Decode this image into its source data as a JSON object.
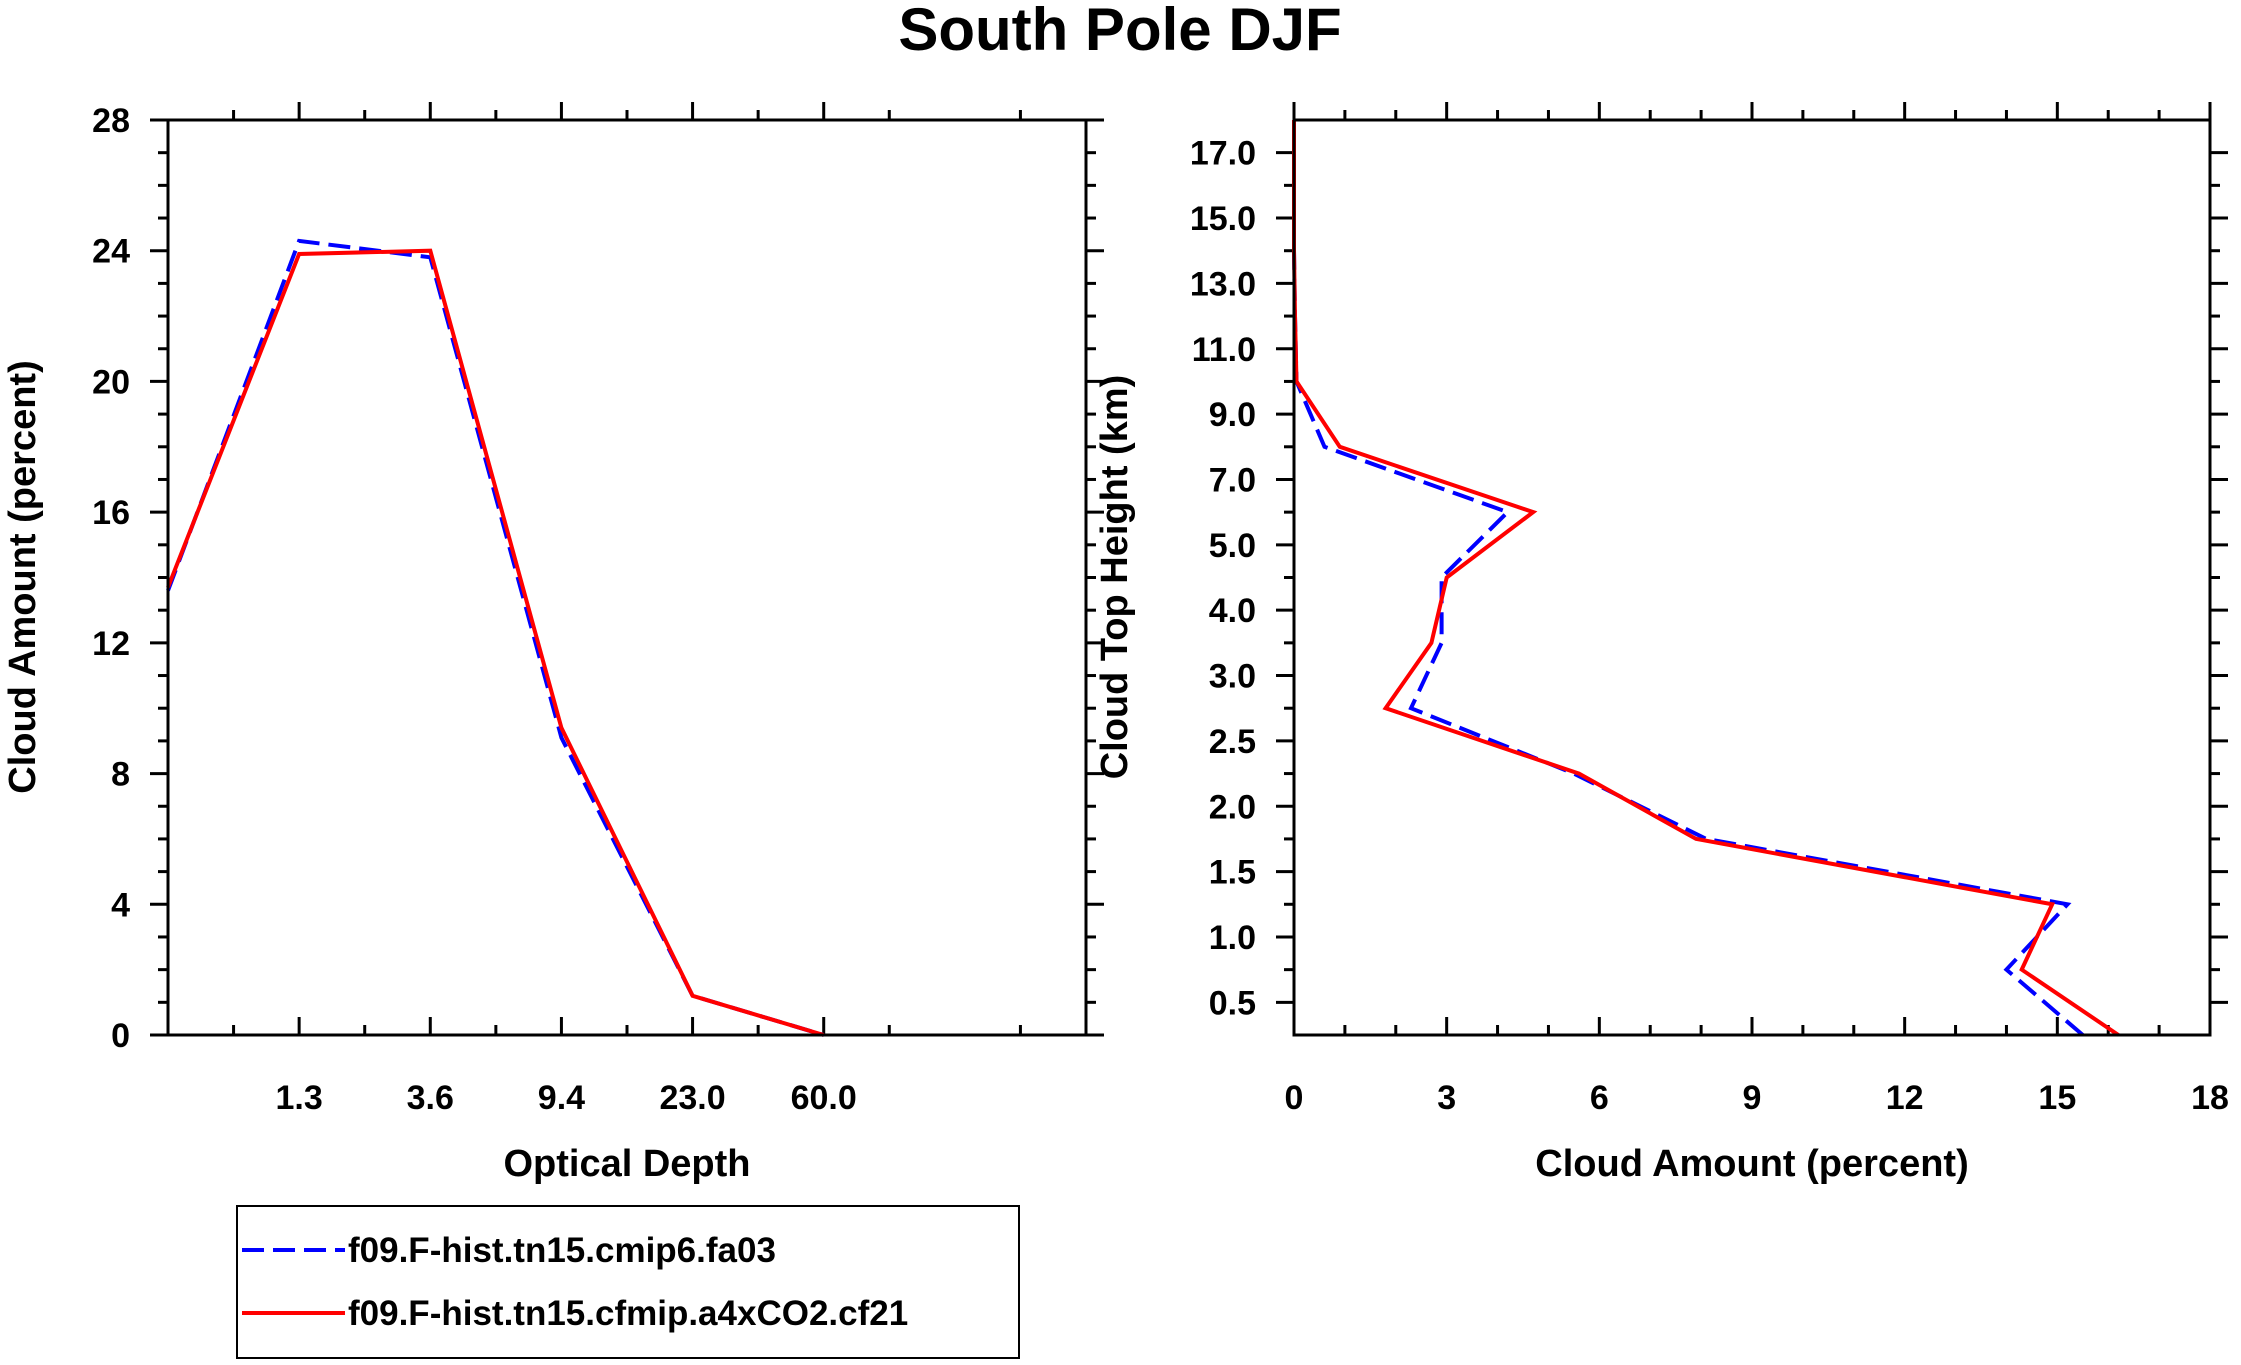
{
  "chart_data": [
    {
      "type": "line",
      "title": "South Pole DJF",
      "xlabel": "Optical Depth",
      "ylabel": "Cloud Amount (percent)",
      "x_tick_labels": [
        "1.3",
        "3.6",
        "9.4",
        "23.0",
        "60.0"
      ],
      "ylim": [
        0,
        28
      ],
      "y_ticks": [
        0,
        4,
        8,
        12,
        16,
        20,
        24,
        28
      ],
      "x": [
        0,
        1,
        2,
        3,
        4,
        5,
        6
      ],
      "series": [
        {
          "name": "f09.F-hist.tn15.cmip6.fa03",
          "color": "#0000ff",
          "style": "dashed",
          "values": [
            13.6,
            24.3,
            23.8,
            9.1,
            1.2,
            0.0,
            null
          ]
        },
        {
          "name": "f09.F-hist.tn15.cfmip.a4xCO2.cf21",
          "color": "#ff0000",
          "style": "solid",
          "values": [
            13.7,
            23.9,
            24.0,
            9.4,
            1.2,
            0.0,
            null
          ]
        }
      ]
    },
    {
      "type": "line",
      "xlabel": "Cloud Amount (percent)",
      "ylabel": "Cloud Top Height (km)",
      "xlim": [
        0,
        18
      ],
      "x_ticks": [
        0,
        3,
        6,
        9,
        12,
        15,
        18
      ],
      "y_tick_labels": [
        "0.5",
        "1.0",
        "1.5",
        "2.0",
        "2.5",
        "3.0",
        "4.0",
        "5.0",
        "7.0",
        "9.0",
        "11.0",
        "13.0",
        "15.0",
        "17.0"
      ],
      "y_levels": [
        0.25,
        0.75,
        1.25,
        1.75,
        2.25,
        2.75,
        3.5,
        4.5,
        6.0,
        8.0,
        10.0,
        12.0,
        14.0,
        16.0,
        18.0
      ],
      "series": [
        {
          "name": "f09.F-hist.tn15.cmip6.fa03",
          "color": "#0000ff",
          "style": "dashed",
          "values": [
            15.5,
            14.0,
            15.2,
            8.1,
            5.5,
            2.3,
            2.9,
            2.9,
            4.2,
            0.6,
            0.05,
            0.02,
            0.0,
            0.0,
            0.0
          ]
        },
        {
          "name": "f09.F-hist.tn15.cfmip.a4xCO2.cf21",
          "color": "#ff0000",
          "style": "solid",
          "values": [
            16.2,
            14.3,
            14.9,
            7.9,
            5.6,
            1.8,
            2.7,
            3.0,
            4.7,
            0.9,
            0.05,
            0.02,
            0.0,
            0.0,
            0.0
          ]
        }
      ]
    }
  ],
  "legend": {
    "entries": [
      {
        "label": "f09.F-hist.tn15.cmip6.fa03",
        "color": "#0000ff",
        "style": "dashed"
      },
      {
        "label": "f09.F-hist.tn15.cfmip.a4xCO2.cf21",
        "color": "#ff0000",
        "style": "solid"
      }
    ]
  }
}
